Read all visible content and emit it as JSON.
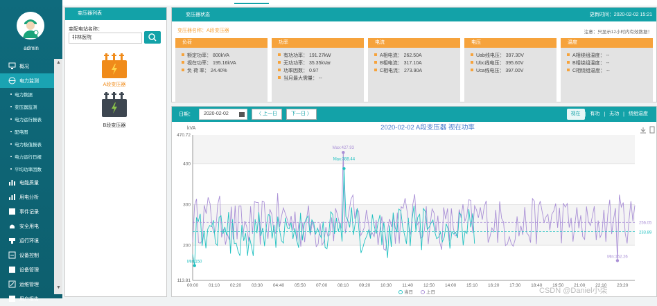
{
  "sidebar": {
    "user": "admin",
    "items": [
      {
        "label": "概况",
        "icon": "monitor-icon"
      },
      {
        "label": "电力监测",
        "icon": "globe-icon"
      },
      {
        "label": "电能质量",
        "icon": "bars-icon"
      },
      {
        "label": "用电分析",
        "icon": "chart-icon"
      },
      {
        "label": "事件记录",
        "icon": "record-icon"
      },
      {
        "label": "安全用电",
        "icon": "alarm-icon"
      },
      {
        "label": "运行环境",
        "icon": "env-icon"
      },
      {
        "label": "设备控制",
        "icon": "control-icon"
      },
      {
        "label": "设备管理",
        "icon": "device-icon"
      },
      {
        "label": "运维管理",
        "icon": "maint-icon"
      },
      {
        "label": "用户报告",
        "icon": "report-icon"
      }
    ],
    "subitems": [
      "电力数据",
      "变压器监测",
      "电力运行报表",
      "配电图",
      "电力极值报表",
      "电力运行日报",
      "平均功率因数"
    ]
  },
  "left": {
    "title": "变压器列表",
    "station_label": "变配电站名称：",
    "station_value": "非林医院",
    "transformers": [
      "A段变压器",
      "B段变压器"
    ]
  },
  "status": {
    "title": "变压器状态",
    "update_label": "更新时间：",
    "update_time": "2020-02-02 15:21",
    "name_label": "变压器名称：",
    "name_value": "A段变压器",
    "note": "注意：只显示12小时内有效数据！",
    "cards": [
      {
        "title": "负荷",
        "rows": [
          "额定功率：  800kVA",
          "视在功率：  195.16kVA",
          "负 荷 率：  24.40%"
        ]
      },
      {
        "title": "功率",
        "rows": [
          "有功功率：  191.27kW",
          "无功功率：  35.35kVar",
          "功率因数：  0.97",
          "当月最大需量：  --"
        ]
      },
      {
        "title": "电流",
        "rows": [
          "A相电流：  262.50A",
          "B相电流：  317.10A",
          "C相电流：  273.90A"
        ]
      },
      {
        "title": "电压",
        "rows": [
          "Uab线电压：  397.30V",
          "Ubc线电压：  395.60V",
          "Uca线电压：  397.00V"
        ]
      },
      {
        "title": "温度",
        "rows": [
          "A相绕组温度：  --",
          "B相绕组温度：  --",
          "C相绕组温度：  --"
        ]
      }
    ]
  },
  "chart_toolbar": {
    "date_label": "日期：",
    "date_value": "2020-02-02",
    "prev": "上一日",
    "next": "下一日",
    "tabs": [
      "视在",
      "有功",
      "无功",
      "绕组温度"
    ]
  },
  "watermark": "CSDN @Daniel小柒",
  "chart_data": {
    "type": "line",
    "title": "2020-02-02  A段变压器  视在功率",
    "ylabel": "kVA",
    "ylim": [
      113.81,
      470.72
    ],
    "yticks": [
      113.81,
      200,
      300,
      400,
      470.72
    ],
    "xticks": [
      "00:00",
      "01:10",
      "02:20",
      "03:30",
      "04:40",
      "05:50",
      "07:00",
      "08:10",
      "09:20",
      "10:30",
      "11:40",
      "12:50",
      "14:00",
      "15:10",
      "16:20",
      "17:30",
      "18:40",
      "19:50",
      "21:00",
      "22:10",
      "23:20"
    ],
    "series": [
      {
        "name": "当日",
        "color": "#20c1c1",
        "max": 388.44,
        "min": 150,
        "avg": 233.89,
        "hours": 15.3
      },
      {
        "name": "上日",
        "color": "#a98fd6",
        "max": 427.93,
        "min": 162.26,
        "avg": 256.05,
        "hours": 24
      }
    ],
    "marks": {
      "today_max": "Max:388.44",
      "yest_max": "Max:427.93",
      "today_min": "Min:150",
      "yest_min": "Min:162.26",
      "avg_yest": "256.05",
      "avg_today": "233.89"
    }
  }
}
